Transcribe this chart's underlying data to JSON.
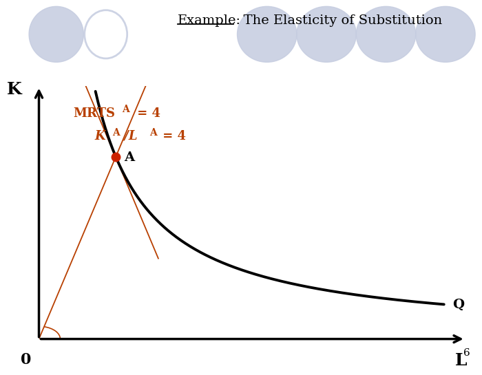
{
  "bg_color": "#ffffff",
  "axis_color": "#000000",
  "curve_color": "#000000",
  "tangent_color": "#b84000",
  "ray_color": "#b84000",
  "point_color": "#cc2200",
  "point_A": [
    1.8,
    7.2
  ],
  "curve_constant": 13.0,
  "label_A": "A",
  "label_Q": "Q",
  "label_K": "K",
  "label_L": "L",
  "label_0": "0",
  "label_6": "6",
  "xlim": [
    0,
    10
  ],
  "ylim": [
    0,
    10
  ],
  "bubble_color": "#c5cce0",
  "figsize": [
    7.2,
    5.4
  ],
  "dpi": 100
}
